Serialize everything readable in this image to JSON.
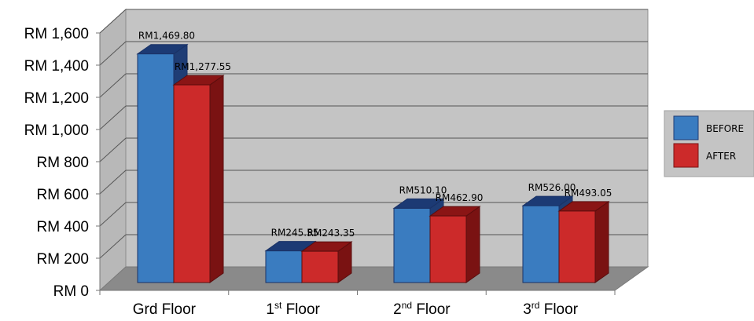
{
  "chart_data": {
    "type": "bar",
    "categories": [
      {
        "base": "Grd Floor",
        "sup": "",
        "rest": ""
      },
      {
        "base": "1",
        "sup": "st",
        "rest": " Floor"
      },
      {
        "base": "2",
        "sup": "nd",
        "rest": " Floor"
      },
      {
        "base": "3",
        "sup": "rd",
        "rest": " Floor"
      }
    ],
    "series": [
      {
        "name": "BEFORE",
        "values": [
          1469.8,
          245.55,
          510.1,
          526.0
        ],
        "labels": [
          "RM1,469.80",
          "RM245.55",
          "RM510.10",
          "RM526.00"
        ]
      },
      {
        "name": "AFTER",
        "values": [
          1277.55,
          243.35,
          462.9,
          493.05
        ],
        "labels": [
          "RM1,277.55",
          "RM243.35",
          "RM462.90",
          "RM493.05"
        ]
      }
    ],
    "yticks": [
      "RM 0",
      "RM 200",
      "RM 400",
      "RM 600",
      "RM 800",
      "RM 1,000",
      "RM 1,200",
      "RM 1,400",
      "RM 1,600"
    ],
    "ylim": [
      0,
      1600
    ],
    "grid": true,
    "legend_position": "right",
    "style": "3d-clustered-column",
    "colors": {
      "before_front": "#3a7cc0",
      "before_side": "#1f3d75",
      "before_top": "#1c3a74",
      "after_front": "#cc2a2a",
      "after_side": "#7a1212",
      "after_top": "#8a1515",
      "wall": "#c4c4c4",
      "floor": "#8a8a8a"
    }
  }
}
